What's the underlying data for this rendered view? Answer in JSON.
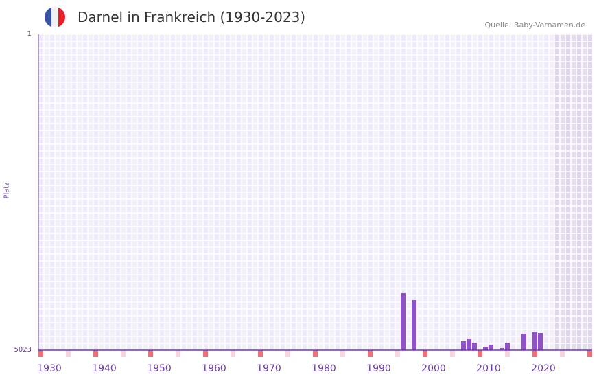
{
  "header": {
    "title": "Darnel in Frankreich (1930-2023)",
    "source": "Quelle: Baby-Vornamen.de",
    "flag_colors": [
      "#3a54a4",
      "#f2f2f2",
      "#e8202a"
    ]
  },
  "chart_data": {
    "type": "bar",
    "title": "Darnel in Frankreich (1930-2023)",
    "ylabel": "Platz",
    "xlabel": "",
    "ylim": [
      5023,
      1
    ],
    "yticks": [
      "1",
      "5023"
    ],
    "xlim": [
      1930,
      2030
    ],
    "xticks": [
      "1930",
      "1940",
      "1950",
      "1960",
      "1970",
      "1980",
      "1990",
      "2000",
      "2010",
      "2020"
    ],
    "shaded_from": 2024,
    "x": [
      1996,
      1998,
      2007,
      2008,
      2009,
      2011,
      2012,
      2014,
      2015,
      2018,
      2020,
      2021
    ],
    "values": [
      4117,
      4226,
      4881,
      4848,
      4903,
      4979,
      4936,
      4990,
      4903,
      4761,
      4739,
      4750
    ],
    "colors": {
      "bar": "#8e54c6",
      "axis": "#6a3d9a",
      "decade_marker": "#e5737c",
      "half_marker": "#f5d6de"
    }
  }
}
